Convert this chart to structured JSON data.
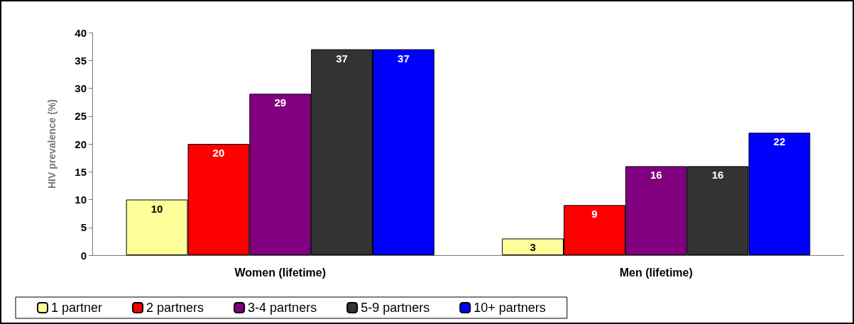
{
  "chart_data": {
    "type": "bar",
    "ylabel": "HIV prevalence (%)",
    "categories": [
      "Women (lifetime)",
      "Men (lifetime)"
    ],
    "series": [
      {
        "name": "1 partner",
        "color": "#ffff99",
        "values": [
          10,
          3
        ]
      },
      {
        "name": "2 partners",
        "color": "#ff0000",
        "values": [
          20,
          9
        ]
      },
      {
        "name": "3-4 partners",
        "color": "#800080",
        "values": [
          29,
          16
        ]
      },
      {
        "name": "5-9 partners",
        "color": "#333333",
        "values": [
          37,
          16
        ]
      },
      {
        "name": "10+ partners",
        "color": "#0000ff",
        "values": [
          37,
          22
        ]
      }
    ],
    "ylim": [
      0,
      40
    ],
    "yticks": [
      0,
      5,
      10,
      15,
      20,
      25,
      30,
      35,
      40
    ],
    "grid": false,
    "legend": "bottom",
    "data_labels": true
  }
}
